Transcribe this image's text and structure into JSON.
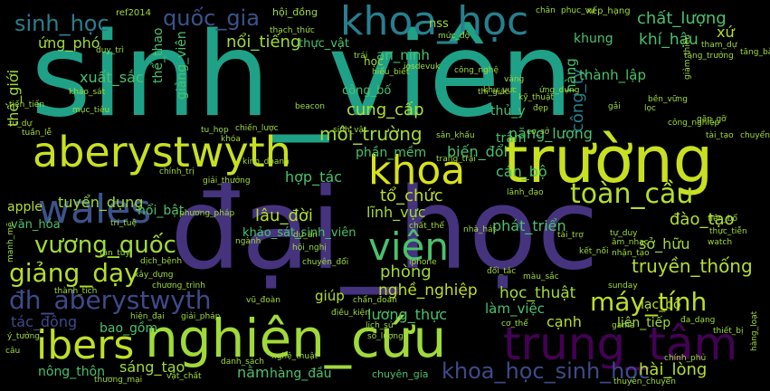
{
  "palette": {
    "background": "#000000",
    "dark_purple": "#440154",
    "purple": "#46337e",
    "indigo": "#365c8d",
    "blue": "#277f8e",
    "teal": "#1fa187",
    "green": "#4ac16d",
    "lime": "#a0da39",
    "yellow": "#fde725"
  },
  "words": [
    {
      "text": "sinh_viên",
      "color": "#1fa187"
    },
    {
      "text": "đại_học",
      "color": "#46337e"
    },
    {
      "text": "nghiên_cứu",
      "color": "#a0da39"
    },
    {
      "text": "trường",
      "color": "#c8e020"
    },
    {
      "text": "aberystwyth",
      "color": "#c8e020"
    },
    {
      "text": "khoa_học",
      "color": "#277f8e"
    },
    {
      "text": "trung_tâm",
      "color": "#440154"
    },
    {
      "text": "wales",
      "color": "#3b528b"
    },
    {
      "text": "khoa",
      "color": "#d8e219"
    },
    {
      "text": "viên",
      "color": "#4ac16d"
    },
    {
      "text": "ibers",
      "color": "#bddf26"
    },
    {
      "text": "vương_quốc",
      "color": "#a0da39"
    },
    {
      "text": "giảng_dạy",
      "color": "#b5de2b"
    },
    {
      "text": "đh_aberystwyth",
      "color": "#3e4a89"
    },
    {
      "text": "toàn_cầu",
      "color": "#b5de2b"
    },
    {
      "text": "máy_tính",
      "color": "#bddf26"
    },
    {
      "text": "sinh_học",
      "color": "#277f8e"
    },
    {
      "text": "quốc_gia",
      "color": "#3b528b"
    },
    {
      "text": "khoa_học_sinh_học",
      "color": "#3e4a89"
    },
    {
      "text": "môi_trường",
      "color": "#a0da39"
    },
    {
      "text": "cung_cấp",
      "color": "#b5de2b"
    },
    {
      "text": "tổ_chức",
      "color": "#bddf26"
    },
    {
      "text": "lâu_đời",
      "color": "#b5de2b"
    },
    {
      "text": "lĩnh_vực",
      "color": "#a0da39"
    },
    {
      "text": "phòng",
      "color": "#a0da39"
    },
    {
      "text": "nghề_nghiệp",
      "color": "#bddf26"
    },
    {
      "text": "truyền_thống",
      "color": "#b5de2b"
    },
    {
      "text": "học_thuật",
      "color": "#a0da39"
    },
    {
      "text": "hài_lòng",
      "color": "#b5de2b"
    },
    {
      "text": "đào_tạo",
      "color": "#b5de2b"
    },
    {
      "text": "sở_hữu",
      "color": "#a0da39"
    },
    {
      "text": "chất_lượng",
      "color": "#4ac16d"
    },
    {
      "text": "khí_hậu",
      "color": "#4ac16d"
    },
    {
      "text": "xứ",
      "color": "#b5de2b"
    },
    {
      "text": "nổi_tiếng",
      "color": "#a0da39"
    },
    {
      "text": "ứng_phó",
      "color": "#a0da39"
    },
    {
      "text": "thế_giới",
      "color": "#a0da39"
    },
    {
      "text": "xuất_sắc",
      "color": "#4ac16d"
    },
    {
      "text": "tuyển_dụng",
      "color": "#a0da39"
    },
    {
      "text": "apple",
      "color": "#b5de2b"
    },
    {
      "text": "nổi_bật",
      "color": "#4ac16d"
    },
    {
      "text": "năng_lượng",
      "color": "#4ac16d"
    },
    {
      "text": "biến_đổi",
      "color": "#4ac16d"
    },
    {
      "text": "cán_bộ",
      "color": "#4ac16d"
    },
    {
      "text": "phát_triển",
      "color": "#4ac16d"
    },
    {
      "text": "hợp_tác",
      "color": "#4ac16d"
    },
    {
      "text": "giúp",
      "color": "#b5de2b"
    },
    {
      "text": "lương_thực",
      "color": "#4ac16d"
    },
    {
      "text": "làm_việc",
      "color": "#4ac16d"
    },
    {
      "text": "cạnh",
      "color": "#b5de2b"
    },
    {
      "text": "lạc_bộ",
      "color": "#b5de2b"
    },
    {
      "text": "nông_thôn",
      "color": "#4ac16d"
    },
    {
      "text": "sáng_tạo",
      "color": "#a0da39"
    },
    {
      "text": "nằm",
      "color": "#4ac16d"
    },
    {
      "text": "hàng_đầu",
      "color": "#4ac16d"
    },
    {
      "text": "tác_động",
      "color": "#3e4a89"
    },
    {
      "text": "bao_gồm",
      "color": "#4ac16d"
    },
    {
      "text": "công_ty",
      "color": "#277f8e"
    },
    {
      "text": "thành_lập",
      "color": "#4ac16d"
    },
    {
      "text": "hàng",
      "color": "#4ac16d"
    },
    {
      "text": "khung",
      "color": "#4ac16d"
    },
    {
      "text": "thể_thao",
      "color": "#4ac16d"
    },
    {
      "text": "giảng_viên",
      "color": "#4ac16d"
    },
    {
      "text": "phần_mềm",
      "color": "#4ac16d"
    },
    {
      "text": "văn_hóa",
      "color": "#4ac16d"
    },
    {
      "text": "an_ninh",
      "color": "#4ac16d"
    },
    {
      "text": "công_bố",
      "color": "#4ac16d"
    },
    {
      "text": "thực_vật",
      "color": "#4ac16d"
    },
    {
      "text": "khảo_sát_sinh_viên",
      "color": "#4ac16d"
    },
    {
      "text": "thủ_y",
      "color": "#4ac16d"
    },
    {
      "text": "trâm",
      "color": "#4ac16d"
    },
    {
      "text": "chuyên_gia",
      "color": "#4ac16d"
    },
    {
      "text": "ref2014",
      "color": "#a0da39"
    },
    {
      "text": "hội_đồng",
      "color": "#a0da39"
    },
    {
      "text": "nss",
      "color": "#a0da39"
    },
    {
      "text": "chân",
      "color": "#a0da39"
    },
    {
      "text": "phục_vụ",
      "color": "#a0da39"
    },
    {
      "text": "xếp_hạng",
      "color": "#a0da39"
    },
    {
      "text": "thạch_thức",
      "color": "#a0da39"
    },
    {
      "text": "mức_độ",
      "color": "#a0da39"
    },
    {
      "text": "tham_dự",
      "color": "#a0da39"
    },
    {
      "text": "duy_trì",
      "color": "#a0da39"
    },
    {
      "text": "trái",
      "color": "#a0da39"
    },
    {
      "text": "iosdevuk",
      "color": "#a0da39"
    },
    {
      "text": "hiểu_biết",
      "color": "#a0da39"
    },
    {
      "text": "học",
      "color": "#a0da39"
    },
    {
      "text": "công_nghệ",
      "color": "#a0da39"
    },
    {
      "text": "tăng_trưởng",
      "color": "#a0da39"
    },
    {
      "text": "khu_vực",
      "color": "#a0da39"
    },
    {
      "text": "vàng",
      "color": "#a0da39"
    },
    {
      "text": "kỹ_thuật",
      "color": "#a0da39"
    },
    {
      "text": "ứng_dụng",
      "color": "#a0da39"
    },
    {
      "text": "đẹp",
      "color": "#a0da39"
    },
    {
      "text": "thi_giác",
      "color": "#a0da39"
    },
    {
      "text": "khảo_sát",
      "color": "#a0da39"
    },
    {
      "text": "tiến_tiến",
      "color": "#a0da39"
    },
    {
      "text": "mục_tiêu",
      "color": "#a0da39"
    },
    {
      "text": "beacon",
      "color": "#a0da39"
    },
    {
      "text": "chiến_lược",
      "color": "#a0da39"
    },
    {
      "text": "tuần_lễ",
      "color": "#a0da39"
    },
    {
      "text": "khóa",
      "color": "#a0da39"
    },
    {
      "text": "tu_họp",
      "color": "#a0da39"
    },
    {
      "text": "sinh_vật",
      "color": "#a0da39"
    },
    {
      "text": "sân_khấu",
      "color": "#a0da39"
    },
    {
      "text": "cơ_sở",
      "color": "#a0da39"
    },
    {
      "text": "kinh_doanh",
      "color": "#a0da39"
    },
    {
      "text": "trang_trại",
      "color": "#a0da39"
    },
    {
      "text": "chính_trị",
      "color": "#a0da39"
    },
    {
      "text": "giải_thưởng",
      "color": "#a0da39"
    },
    {
      "text": "lãnh_đạo",
      "color": "#a0da39"
    },
    {
      "text": "phương_pháp",
      "color": "#a0da39"
    },
    {
      "text": "trí_tuệ",
      "color": "#a0da39"
    },
    {
      "text": "dự_án",
      "color": "#a0da39"
    },
    {
      "text": "hội_nghị",
      "color": "#a0da39"
    },
    {
      "text": "chất_thể",
      "color": "#a0da39"
    },
    {
      "text": "nhà_hát",
      "color": "#a0da39"
    },
    {
      "text": "tài_trợ",
      "color": "#a0da39"
    },
    {
      "text": "tự_duy",
      "color": "#a0da39"
    },
    {
      "text": "tiền_bổ",
      "color": "#a0da39"
    },
    {
      "text": "thực_tiễn",
      "color": "#a0da39"
    },
    {
      "text": "ngành",
      "color": "#a0da39"
    },
    {
      "text": "kết_nối",
      "color": "#a0da39"
    },
    {
      "text": "âm_nhạc",
      "color": "#a0da39"
    },
    {
      "text": "nhận_tạo",
      "color": "#a0da39"
    },
    {
      "text": "watch",
      "color": "#a0da39"
    },
    {
      "text": "tận_tuy",
      "color": "#a0da39"
    },
    {
      "text": "dịch_bệnh",
      "color": "#a0da39"
    },
    {
      "text": "chuyên_đổi",
      "color": "#a0da39"
    },
    {
      "text": "iphone",
      "color": "#a0da39"
    },
    {
      "text": "đối_tác",
      "color": "#a0da39"
    },
    {
      "text": "màu_sắc",
      "color": "#a0da39"
    },
    {
      "text": "xây_dựng",
      "color": "#a0da39"
    },
    {
      "text": "chương_trình",
      "color": "#a0da39"
    },
    {
      "text": "thành_tích",
      "color": "#a0da39"
    },
    {
      "text": "vũ_đoàn",
      "color": "#a0da39"
    },
    {
      "text": "chẩn_đoán",
      "color": "#a0da39"
    },
    {
      "text": "hiện_đại",
      "color": "#a0da39"
    },
    {
      "text": "giải_pháp",
      "color": "#a0da39"
    },
    {
      "text": "điều_kiện",
      "color": "#a0da39"
    },
    {
      "text": "cơ_thể",
      "color": "#a0da39"
    },
    {
      "text": "sunday",
      "color": "#a0da39"
    },
    {
      "text": "câu",
      "color": "#a0da39"
    },
    {
      "text": "số_lượng",
      "color": "#a0da39"
    },
    {
      "text": "lịch_sử",
      "color": "#a0da39"
    },
    {
      "text": "danh_sách",
      "color": "#a0da39"
    },
    {
      "text": "vật_chất",
      "color": "#a0da39"
    },
    {
      "text": "thương_mại",
      "color": "#a0da39"
    },
    {
      "text": "nghệ_thuật",
      "color": "#a0da39"
    },
    {
      "text": "liên_tiếp",
      "color": "#a0da39"
    },
    {
      "text": "đa_dạng",
      "color": "#a0da39"
    },
    {
      "text": "thiết_bị",
      "color": "#a0da39"
    },
    {
      "text": "chính_phủ",
      "color": "#a0da39"
    },
    {
      "text": "thuyên_chuyển",
      "color": "#a0da39"
    },
    {
      "text": "game",
      "color": "#a0da39"
    },
    {
      "text": "lọc",
      "color": "#a0da39"
    },
    {
      "text": "gặp_gỡ",
      "color": "#a0da39"
    },
    {
      "text": "công_nghiệp",
      "color": "#a0da39"
    },
    {
      "text": "tài_tạo",
      "color": "#a0da39"
    },
    {
      "text": "bền_vững",
      "color": "#a0da39"
    },
    {
      "text": "gắi",
      "color": "#a0da39"
    },
    {
      "text": "chuyển",
      "color": "#a0da39"
    },
    {
      "text": "tư_dự",
      "color": "#a0da39"
    },
    {
      "text": "tăng_bà",
      "color": "#a0da39"
    },
    {
      "text": "giảm_thiểu",
      "color": "#a0da39"
    },
    {
      "text": "hàng_loạt",
      "color": "#a0da39"
    },
    {
      "text": "manh_mẽ",
      "color": "#a0da39"
    },
    {
      "text": "ý_tưởng",
      "color": "#a0da39"
    }
  ]
}
